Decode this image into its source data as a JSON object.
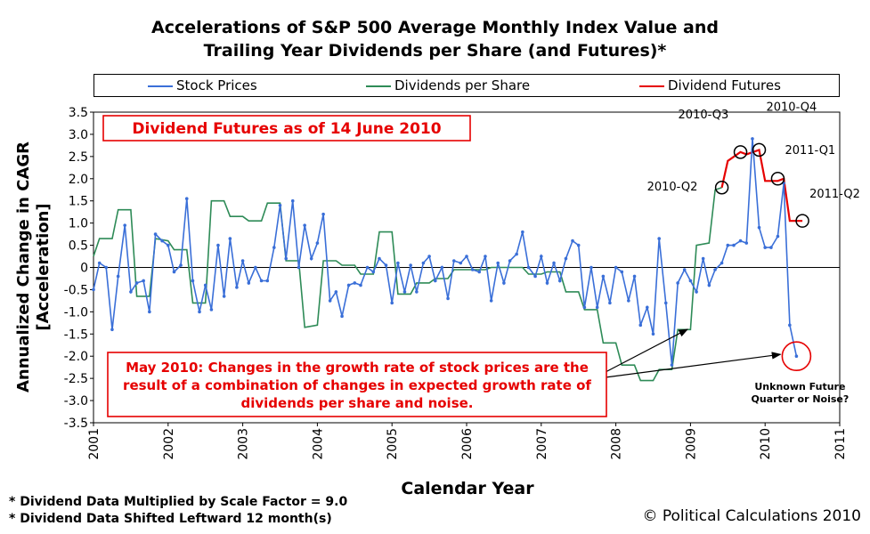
{
  "title_lines": [
    "Accelerations of S&P 500 Average Monthly Index Value and",
    "Trailing Year Dividends per Share (and Futures)*"
  ],
  "legend": {
    "placement": "top",
    "items": [
      {
        "name": "Stock Prices",
        "color": "#3a6fd8"
      },
      {
        "name": "Dividends per Share",
        "color": "#2e8b57"
      },
      {
        "name": "Dividend Futures",
        "color": "#e60000"
      }
    ]
  },
  "footnotes": [
    "* Dividend Data Multiplied by Scale Factor = 9.0",
    "* Dividend Data Shifted Leftward 12 month(s)"
  ],
  "credit": "© Political Calculations 2010",
  "annotations": {
    "box_title": "Dividend Futures as of 14 June 2010",
    "may_note": [
      "May 2010: Changes in the growth rate of stock prices are the",
      "result of a combination of changes in expected growth rate of",
      "dividends per share and noise."
    ],
    "unknown": [
      "Unknown Future",
      "Quarter or Noise?"
    ],
    "quarters": [
      "2010-Q2",
      "2010-Q3",
      "2010-Q4",
      "2011-Q1",
      "2011-Q2"
    ]
  },
  "chart_data": {
    "type": "line",
    "title": "Accelerations of S&P 500 Average Monthly Index Value and Trailing Year Dividends per Share (and Futures)*",
    "xlabel": "Calendar Year",
    "ylabel": "Annualized Change in CAGR [Acceleration]",
    "xlim": [
      2001,
      2011
    ],
    "ylim": [
      -3.5,
      3.5
    ],
    "x_ticks": [
      2001,
      2002,
      2003,
      2004,
      2005,
      2006,
      2007,
      2008,
      2009,
      2010,
      2011
    ],
    "y_ticks": [
      3.5,
      3.0,
      2.5,
      2.0,
      1.5,
      1.0,
      0.5,
      0.0,
      -0.5,
      -1.0,
      -1.5,
      -2.0,
      -2.5,
      -3.0,
      -3.5
    ],
    "y_tick_labels": [
      "3.5",
      "3.0",
      "2.5",
      "2.0",
      "1.5",
      "1.0",
      "0.5",
      "0",
      "-0.5",
      "-1.0",
      "-1.5",
      "-2.0",
      "-2.5",
      "-3.0",
      "-3.5"
    ],
    "grid": false,
    "series": [
      {
        "name": "Stock Prices",
        "color": "#3a6fd8",
        "marker": "dot",
        "points": [
          [
            2001.0,
            -0.5
          ],
          [
            2001.08,
            0.1
          ],
          [
            2001.17,
            0.0
          ],
          [
            2001.25,
            -1.4
          ],
          [
            2001.33,
            -0.2
          ],
          [
            2001.42,
            0.95
          ],
          [
            2001.5,
            -0.55
          ],
          [
            2001.58,
            -0.35
          ],
          [
            2001.67,
            -0.3
          ],
          [
            2001.75,
            -1.0
          ],
          [
            2001.83,
            0.75
          ],
          [
            2001.92,
            0.6
          ],
          [
            2002.0,
            0.5
          ],
          [
            2002.08,
            -0.1
          ],
          [
            2002.17,
            0.05
          ],
          [
            2002.25,
            1.55
          ],
          [
            2002.33,
            -0.3
          ],
          [
            2002.42,
            -1.0
          ],
          [
            2002.5,
            -0.4
          ],
          [
            2002.58,
            -0.95
          ],
          [
            2002.67,
            0.5
          ],
          [
            2002.75,
            -0.65
          ],
          [
            2002.83,
            0.65
          ],
          [
            2002.92,
            -0.45
          ],
          [
            2003.0,
            0.15
          ],
          [
            2003.08,
            -0.35
          ],
          [
            2003.17,
            0.0
          ],
          [
            2003.25,
            -0.3
          ],
          [
            2003.33,
            -0.3
          ],
          [
            2003.42,
            0.45
          ],
          [
            2003.5,
            1.4
          ],
          [
            2003.58,
            0.2
          ],
          [
            2003.67,
            1.5
          ],
          [
            2003.75,
            0.0
          ],
          [
            2003.83,
            0.95
          ],
          [
            2003.92,
            0.2
          ],
          [
            2004.0,
            0.55
          ],
          [
            2004.08,
            1.2
          ],
          [
            2004.17,
            -0.75
          ],
          [
            2004.25,
            -0.55
          ],
          [
            2004.33,
            -1.1
          ],
          [
            2004.42,
            -0.4
          ],
          [
            2004.5,
            -0.35
          ],
          [
            2004.58,
            -0.4
          ],
          [
            2004.67,
            0.0
          ],
          [
            2004.75,
            -0.1
          ],
          [
            2004.83,
            0.2
          ],
          [
            2004.92,
            0.05
          ],
          [
            2005.0,
            -0.8
          ],
          [
            2005.08,
            0.1
          ],
          [
            2005.17,
            -0.55
          ],
          [
            2005.25,
            0.05
          ],
          [
            2005.33,
            -0.55
          ],
          [
            2005.42,
            0.1
          ],
          [
            2005.5,
            0.25
          ],
          [
            2005.58,
            -0.3
          ],
          [
            2005.67,
            0.0
          ],
          [
            2005.75,
            -0.7
          ],
          [
            2005.83,
            0.15
          ],
          [
            2005.92,
            0.1
          ],
          [
            2006.0,
            0.25
          ],
          [
            2006.08,
            -0.05
          ],
          [
            2006.17,
            -0.1
          ],
          [
            2006.25,
            0.25
          ],
          [
            2006.33,
            -0.75
          ],
          [
            2006.42,
            0.1
          ],
          [
            2006.5,
            -0.35
          ],
          [
            2006.58,
            0.15
          ],
          [
            2006.67,
            0.3
          ],
          [
            2006.75,
            0.8
          ],
          [
            2006.83,
            0.0
          ],
          [
            2006.92,
            -0.2
          ],
          [
            2007.0,
            0.25
          ],
          [
            2007.08,
            -0.35
          ],
          [
            2007.17,
            0.1
          ],
          [
            2007.25,
            -0.3
          ],
          [
            2007.33,
            0.2
          ],
          [
            2007.42,
            0.6
          ],
          [
            2007.5,
            0.5
          ],
          [
            2007.58,
            -0.9
          ],
          [
            2007.67,
            0.0
          ],
          [
            2007.75,
            -0.9
          ],
          [
            2007.83,
            -0.2
          ],
          [
            2007.92,
            -0.8
          ],
          [
            2008.0,
            0.0
          ],
          [
            2008.08,
            -0.1
          ],
          [
            2008.17,
            -0.75
          ],
          [
            2008.25,
            -0.2
          ],
          [
            2008.33,
            -1.3
          ],
          [
            2008.42,
            -0.9
          ],
          [
            2008.5,
            -1.5
          ],
          [
            2008.58,
            0.65
          ],
          [
            2008.67,
            -0.8
          ],
          [
            2008.75,
            -2.2
          ],
          [
            2008.83,
            -0.35
          ],
          [
            2008.92,
            -0.05
          ],
          [
            2009.0,
            -0.3
          ],
          [
            2009.08,
            -0.55
          ],
          [
            2009.17,
            0.2
          ],
          [
            2009.25,
            -0.4
          ],
          [
            2009.33,
            -0.05
          ],
          [
            2009.42,
            0.1
          ],
          [
            2009.5,
            0.5
          ],
          [
            2009.58,
            0.5
          ],
          [
            2009.67,
            0.6
          ],
          [
            2009.75,
            0.55
          ],
          [
            2009.83,
            2.9
          ],
          [
            2009.92,
            0.9
          ],
          [
            2010.0,
            0.45
          ],
          [
            2010.08,
            0.45
          ],
          [
            2010.17,
            0.7
          ],
          [
            2010.25,
            1.9
          ],
          [
            2010.33,
            -1.3
          ],
          [
            2010.42,
            -2.0
          ]
        ]
      },
      {
        "name": "Dividends per Share",
        "color": "#2e8b57",
        "marker": "none",
        "points": [
          [
            2001.0,
            0.25
          ],
          [
            2001.08,
            0.65
          ],
          [
            2001.25,
            0.65
          ],
          [
            2001.33,
            1.3
          ],
          [
            2001.5,
            1.3
          ],
          [
            2001.58,
            -0.65
          ],
          [
            2001.75,
            -0.65
          ],
          [
            2001.83,
            0.65
          ],
          [
            2002.0,
            0.6
          ],
          [
            2002.08,
            0.4
          ],
          [
            2002.25,
            0.4
          ],
          [
            2002.33,
            -0.8
          ],
          [
            2002.5,
            -0.8
          ],
          [
            2002.58,
            1.5
          ],
          [
            2002.75,
            1.5
          ],
          [
            2002.83,
            1.15
          ],
          [
            2003.0,
            1.15
          ],
          [
            2003.08,
            1.05
          ],
          [
            2003.25,
            1.05
          ],
          [
            2003.33,
            1.45
          ],
          [
            2003.5,
            1.45
          ],
          [
            2003.58,
            0.15
          ],
          [
            2003.75,
            0.15
          ],
          [
            2003.83,
            -1.35
          ],
          [
            2004.0,
            -1.3
          ],
          [
            2004.08,
            0.15
          ],
          [
            2004.25,
            0.15
          ],
          [
            2004.33,
            0.05
          ],
          [
            2004.5,
            0.05
          ],
          [
            2004.58,
            -0.15
          ],
          [
            2004.75,
            -0.15
          ],
          [
            2004.83,
            0.8
          ],
          [
            2005.0,
            0.8
          ],
          [
            2005.08,
            -0.6
          ],
          [
            2005.25,
            -0.6
          ],
          [
            2005.33,
            -0.35
          ],
          [
            2005.5,
            -0.35
          ],
          [
            2005.58,
            -0.25
          ],
          [
            2005.75,
            -0.25
          ],
          [
            2005.83,
            -0.05
          ],
          [
            2006.0,
            -0.05
          ],
          [
            2006.08,
            -0.05
          ],
          [
            2006.25,
            -0.05
          ],
          [
            2006.33,
            0.0
          ],
          [
            2006.5,
            0.0
          ],
          [
            2006.58,
            0.0
          ],
          [
            2006.75,
            0.0
          ],
          [
            2006.83,
            -0.15
          ],
          [
            2007.0,
            -0.15
          ],
          [
            2007.08,
            -0.1
          ],
          [
            2007.25,
            -0.1
          ],
          [
            2007.33,
            -0.55
          ],
          [
            2007.5,
            -0.55
          ],
          [
            2007.58,
            -0.95
          ],
          [
            2007.75,
            -0.95
          ],
          [
            2007.83,
            -1.7
          ],
          [
            2008.0,
            -1.7
          ],
          [
            2008.08,
            -2.2
          ],
          [
            2008.25,
            -2.2
          ],
          [
            2008.33,
            -2.55
          ],
          [
            2008.5,
            -2.55
          ],
          [
            2008.58,
            -2.3
          ],
          [
            2008.75,
            -2.3
          ],
          [
            2008.83,
            -1.4
          ],
          [
            2009.0,
            -1.4
          ],
          [
            2009.08,
            0.5
          ],
          [
            2009.25,
            0.55
          ],
          [
            2009.33,
            1.75
          ],
          [
            2009.42,
            1.8
          ]
        ]
      },
      {
        "name": "Dividend Futures",
        "color": "#e60000",
        "marker": "none",
        "points": [
          [
            2009.42,
            1.8
          ],
          [
            2009.5,
            2.4
          ],
          [
            2009.67,
            2.6
          ],
          [
            2009.75,
            2.55
          ],
          [
            2009.92,
            2.65
          ],
          [
            2010.0,
            1.95
          ],
          [
            2010.17,
            1.95
          ],
          [
            2010.25,
            2.0
          ],
          [
            2010.33,
            1.05
          ],
          [
            2010.5,
            1.05
          ]
        ]
      }
    ],
    "quarter_markers": [
      {
        "label": "2010-Q2",
        "x": 2009.42,
        "y": 1.8
      },
      {
        "label": "2010-Q3",
        "x": 2009.67,
        "y": 2.6
      },
      {
        "label": "2010-Q4",
        "x": 2009.92,
        "y": 2.65
      },
      {
        "label": "2011-Q1",
        "x": 2010.17,
        "y": 2.0
      },
      {
        "label": "2011-Q2",
        "x": 2010.5,
        "y": 1.05
      }
    ],
    "highlight_circle": {
      "x": 2010.42,
      "y": -2.0
    }
  }
}
